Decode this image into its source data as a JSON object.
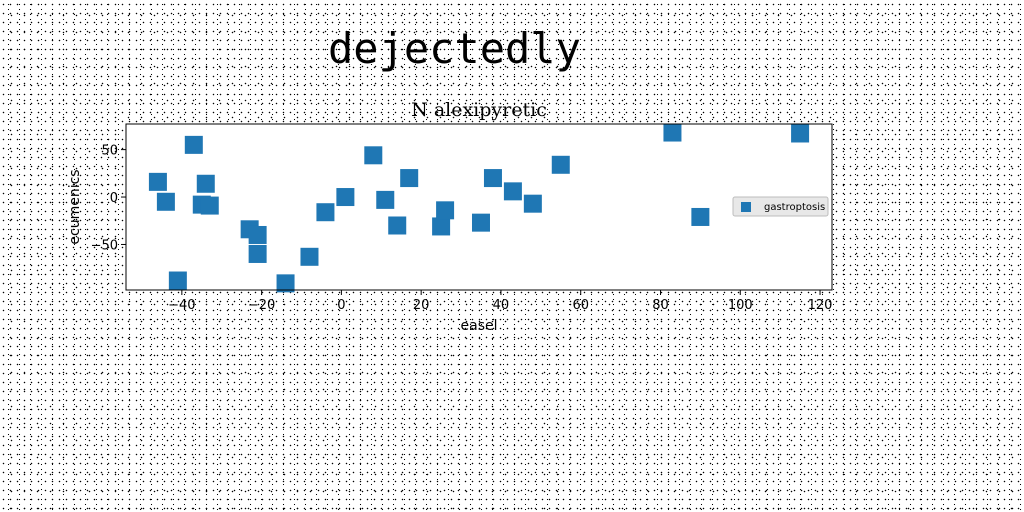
{
  "page": {
    "heading": "dejectedly"
  },
  "chart_data": {
    "type": "scatter",
    "title": "N alexipyretic",
    "xlabel": "easel",
    "ylabel": "ecumenics",
    "xlim": [
      -54,
      123
    ],
    "ylim": [
      -98,
      77
    ],
    "xticks": [
      -40,
      -20,
      0,
      20,
      40,
      60,
      80,
      100,
      120
    ],
    "yticks": [
      -50,
      0,
      50
    ],
    "grid": false,
    "legend_position": "center-right",
    "series": [
      {
        "name": "gastroptosis",
        "color": "#1f77b4",
        "marker": "square",
        "points": [
          {
            "x": -46,
            "y": 16
          },
          {
            "x": -44,
            "y": -5
          },
          {
            "x": -41,
            "y": -88
          },
          {
            "x": -37,
            "y": 55
          },
          {
            "x": -35,
            "y": -8
          },
          {
            "x": -34,
            "y": 14
          },
          {
            "x": -33,
            "y": -9
          },
          {
            "x": -23,
            "y": -34
          },
          {
            "x": -21,
            "y": -40
          },
          {
            "x": -21,
            "y": -60
          },
          {
            "x": -14,
            "y": -91
          },
          {
            "x": -8,
            "y": -63
          },
          {
            "x": -4,
            "y": -16
          },
          {
            "x": 1,
            "y": 0
          },
          {
            "x": 8,
            "y": 44
          },
          {
            "x": 11,
            "y": -3
          },
          {
            "x": 14,
            "y": -30
          },
          {
            "x": 17,
            "y": 20
          },
          {
            "x": 25,
            "y": -31
          },
          {
            "x": 26,
            "y": -14
          },
          {
            "x": 35,
            "y": -27
          },
          {
            "x": 38,
            "y": 20
          },
          {
            "x": 43,
            "y": 6
          },
          {
            "x": 48,
            "y": -7
          },
          {
            "x": 55,
            "y": 34
          },
          {
            "x": 83,
            "y": 68
          },
          {
            "x": 90,
            "y": -21
          },
          {
            "x": 115,
            "y": 67
          }
        ]
      }
    ]
  }
}
